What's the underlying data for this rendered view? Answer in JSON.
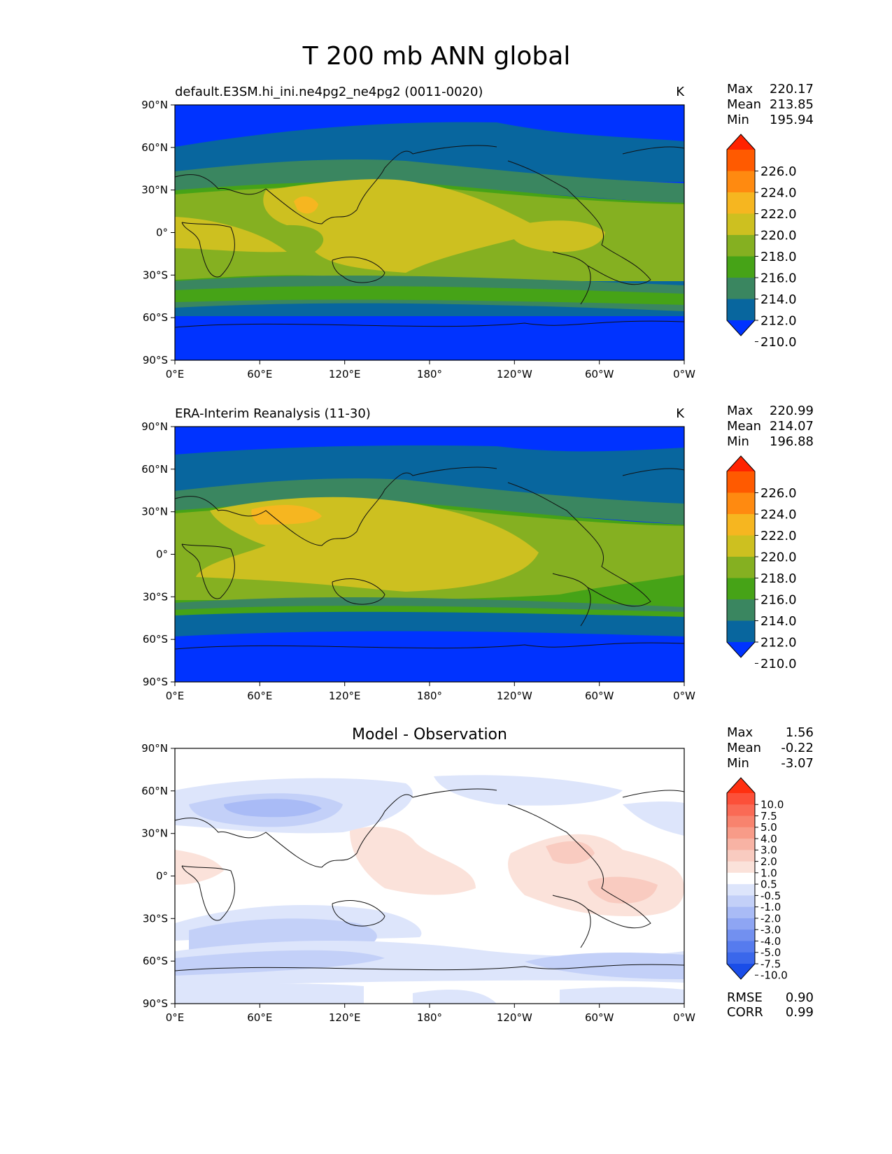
{
  "title": "T 200 mb ANN global",
  "panels": [
    {
      "id": "test",
      "left_title": "default.E3SM.hi_ini.ne4pg2_ne4pg2 (0011-0020)",
      "center_title": "",
      "units": "K",
      "stats": [
        {
          "label": "Max",
          "value": "220.17"
        },
        {
          "label": "Mean",
          "value": "213.85"
        },
        {
          "label": "Min",
          "value": "195.94"
        }
      ],
      "colorbar": {
        "labels": [
          "226.0",
          "224.0",
          "222.0",
          "220.0",
          "218.0",
          "216.0",
          "214.0",
          "212.0",
          "210.0"
        ],
        "colors": [
          "#ff2200",
          "#ff5a00",
          "#ff8a10",
          "#f6b620",
          "#cdc020",
          "#85b021",
          "#46a317",
          "#3a8660",
          "#08669e",
          "#0033ff"
        ],
        "extend": "both"
      }
    },
    {
      "id": "ref",
      "left_title": "ERA-Interim Reanalysis (11-30)",
      "center_title": "",
      "units": "K",
      "stats": [
        {
          "label": "Max",
          "value": "220.99"
        },
        {
          "label": "Mean",
          "value": "214.07"
        },
        {
          "label": "Min",
          "value": "196.88"
        }
      ],
      "colorbar": {
        "labels": [
          "226.0",
          "224.0",
          "222.0",
          "220.0",
          "218.0",
          "216.0",
          "214.0",
          "212.0",
          "210.0"
        ],
        "colors": [
          "#ff2200",
          "#ff5a00",
          "#ff8a10",
          "#f6b620",
          "#cdc020",
          "#85b021",
          "#46a317",
          "#3a8660",
          "#08669e",
          "#0033ff"
        ],
        "extend": "both"
      }
    },
    {
      "id": "diff",
      "left_title": "",
      "center_title": "Model - Observation",
      "units": "",
      "stats": [
        {
          "label": "Max",
          "value": "1.56"
        },
        {
          "label": "Mean",
          "value": "-0.22"
        },
        {
          "label": "Min",
          "value": "-3.07"
        }
      ],
      "extra_stats": [
        {
          "label": "RMSE",
          "value": "0.90"
        },
        {
          "label": "CORR",
          "value": "0.99"
        }
      ],
      "colorbar": {
        "labels": [
          "10.0",
          "7.5",
          "5.0",
          "4.0",
          "3.0",
          "2.0",
          "1.0",
          "0.5",
          "-0.5",
          "-1.0",
          "-2.0",
          "-3.0",
          "-4.0",
          "-5.0",
          "-7.5",
          "-10.0"
        ],
        "colors": [
          "#ff3010",
          "#fc5039",
          "#fa6a55",
          "#f8836e",
          "#f89b88",
          "#f8b3a4",
          "#f9cbc0",
          "#fbe2da",
          "#ffffff",
          "#dde5fb",
          "#c3d0f8",
          "#a9bbf6",
          "#8ea5f3",
          "#7290f0",
          "#567bee",
          "#3a67eb",
          "#1a4de8"
        ],
        "extend": "both"
      }
    }
  ],
  "x_ticks": [
    "0°E",
    "60°E",
    "120°E",
    "180°",
    "120°W",
    "60°W",
    "0°W"
  ],
  "y_ticks": [
    "90°N",
    "60°N",
    "30°N",
    "0°",
    "30°S",
    "60°S",
    "90°S"
  ]
}
